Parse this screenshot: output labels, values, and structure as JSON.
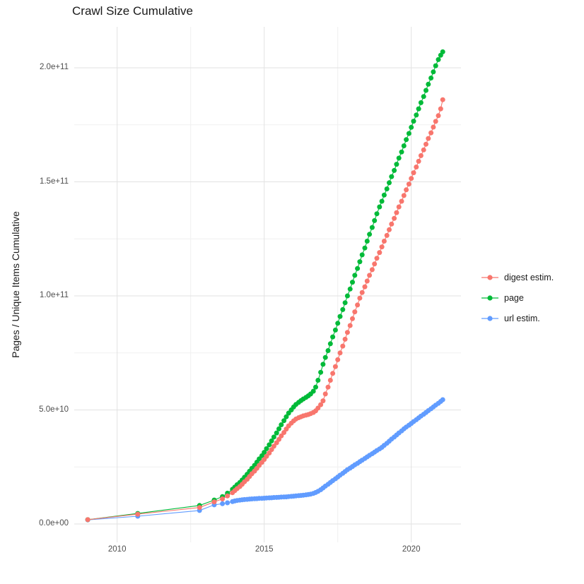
{
  "title": "Crawl Size Cumulative",
  "chart_data": {
    "type": "scatter",
    "marker": "circle-with-line",
    "title": "Crawl Size Cumulative",
    "xlabel": "",
    "ylabel": "Pages / Unique Items Cumulative",
    "value_unit_note": "series values in billions (1e9) of pages / unique items",
    "grid": "on",
    "legend_position": "right",
    "xlim": [
      2008.54,
      2021.69
    ],
    "ylim_billions": [
      -8,
      218
    ],
    "x_ticks": [
      {
        "label": "2010",
        "year": 2010
      },
      {
        "label": "2015",
        "year": 2015
      },
      {
        "label": "2020",
        "year": 2020
      }
    ],
    "x_minor_ticks": [
      2012.5,
      2017.5
    ],
    "y_ticks": [
      {
        "label": "0.0e+00",
        "value_billions": 0
      },
      {
        "label": "5.0e+10",
        "value_billions": 50
      },
      {
        "label": "1.0e+11",
        "value_billions": 100
      },
      {
        "label": "1.5e+11",
        "value_billions": 150
      },
      {
        "label": "2.0e+11",
        "value_billions": 200
      }
    ],
    "y_minor_ticks_billions": [
      25,
      75,
      125,
      175
    ],
    "series": [
      {
        "name": "digest estim.",
        "color": "#F8766D",
        "points": [
          [
            2009.0,
            1.9
          ],
          [
            2010.7,
            4.3
          ],
          [
            2012.8,
            7.2
          ],
          [
            2013.3,
            9.7
          ],
          [
            2013.58,
            11.0
          ],
          [
            2013.75,
            12.3
          ],
          [
            2013.92,
            13.7
          ],
          [
            2014.0,
            14.6
          ],
          [
            2014.08,
            15.5
          ],
          [
            2014.17,
            16.4
          ],
          [
            2014.25,
            17.4
          ],
          [
            2014.33,
            18.5
          ],
          [
            2014.42,
            19.6
          ],
          [
            2014.5,
            20.8
          ],
          [
            2014.58,
            22.0
          ],
          [
            2014.67,
            23.2
          ],
          [
            2014.75,
            24.4
          ],
          [
            2014.83,
            25.7
          ],
          [
            2014.92,
            27.0
          ],
          [
            2015.0,
            28.3
          ],
          [
            2015.08,
            29.7
          ],
          [
            2015.17,
            31.1
          ],
          [
            2015.25,
            32.6
          ],
          [
            2015.33,
            34.1
          ],
          [
            2015.42,
            35.6
          ],
          [
            2015.5,
            37.1
          ],
          [
            2015.58,
            38.6
          ],
          [
            2015.67,
            40.1
          ],
          [
            2015.75,
            41.6
          ],
          [
            2015.83,
            43.0
          ],
          [
            2015.92,
            44.2
          ],
          [
            2016.0,
            45.2
          ],
          [
            2016.08,
            46.0
          ],
          [
            2016.17,
            46.6
          ],
          [
            2016.25,
            47.0
          ],
          [
            2016.33,
            47.4
          ],
          [
            2016.42,
            47.7
          ],
          [
            2016.5,
            48.0
          ],
          [
            2016.58,
            48.4
          ],
          [
            2016.67,
            48.9
          ],
          [
            2016.75,
            49.6
          ],
          [
            2016.83,
            50.8
          ],
          [
            2016.92,
            52.3
          ],
          [
            2017.0,
            54.0
          ],
          [
            2017.08,
            57.0
          ],
          [
            2017.17,
            60.0
          ],
          [
            2017.25,
            63.0
          ],
          [
            2017.33,
            66.0
          ],
          [
            2017.42,
            69.0
          ],
          [
            2017.5,
            72.0
          ],
          [
            2017.58,
            75.0
          ],
          [
            2017.67,
            78.0
          ],
          [
            2017.75,
            81.0
          ],
          [
            2017.83,
            84.0
          ],
          [
            2017.92,
            87.0
          ],
          [
            2018.0,
            90.0
          ],
          [
            2018.08,
            93.0
          ],
          [
            2018.17,
            96.0
          ],
          [
            2018.25,
            99.0
          ],
          [
            2018.33,
            101.5
          ],
          [
            2018.42,
            104.0
          ],
          [
            2018.5,
            106.5
          ],
          [
            2018.58,
            109.0
          ],
          [
            2018.67,
            111.5
          ],
          [
            2018.75,
            114.0
          ],
          [
            2018.83,
            116.5
          ],
          [
            2018.92,
            119.0
          ],
          [
            2019.0,
            121.5
          ],
          [
            2019.08,
            124.0
          ],
          [
            2019.17,
            126.5
          ],
          [
            2019.25,
            129.0
          ],
          [
            2019.33,
            131.5
          ],
          [
            2019.42,
            134.0
          ],
          [
            2019.5,
            136.5
          ],
          [
            2019.58,
            139.0
          ],
          [
            2019.67,
            141.5
          ],
          [
            2019.75,
            144.0
          ],
          [
            2019.83,
            146.5
          ],
          [
            2019.92,
            149.0
          ],
          [
            2020.0,
            151.5
          ],
          [
            2020.08,
            154.0
          ],
          [
            2020.17,
            156.5
          ],
          [
            2020.25,
            159.0
          ],
          [
            2020.33,
            161.5
          ],
          [
            2020.42,
            164.0
          ],
          [
            2020.5,
            166.5
          ],
          [
            2020.58,
            169.0
          ],
          [
            2020.67,
            171.5
          ],
          [
            2020.75,
            174.0
          ],
          [
            2020.83,
            176.5
          ],
          [
            2020.92,
            179.0
          ],
          [
            2021.0,
            182.0
          ],
          [
            2021.07,
            186.0
          ]
        ]
      },
      {
        "name": "page",
        "color": "#00BA38",
        "points": [
          [
            2009.0,
            1.9
          ],
          [
            2010.7,
            4.6
          ],
          [
            2012.8,
            8.1
          ],
          [
            2013.3,
            10.5
          ],
          [
            2013.58,
            12.0
          ],
          [
            2013.75,
            13.5
          ],
          [
            2013.92,
            15.2
          ],
          [
            2014.0,
            16.2
          ],
          [
            2014.08,
            17.2
          ],
          [
            2014.17,
            18.2
          ],
          [
            2014.25,
            19.3
          ],
          [
            2014.33,
            20.5
          ],
          [
            2014.42,
            21.8
          ],
          [
            2014.5,
            23.1
          ],
          [
            2014.58,
            24.4
          ],
          [
            2014.67,
            25.7
          ],
          [
            2014.75,
            27.1
          ],
          [
            2014.83,
            28.5
          ],
          [
            2014.92,
            29.9
          ],
          [
            2015.0,
            31.4
          ],
          [
            2015.08,
            33.0
          ],
          [
            2015.17,
            34.7
          ],
          [
            2015.25,
            36.4
          ],
          [
            2015.33,
            38.1
          ],
          [
            2015.42,
            39.9
          ],
          [
            2015.5,
            41.7
          ],
          [
            2015.58,
            43.5
          ],
          [
            2015.67,
            45.3
          ],
          [
            2015.75,
            47.0
          ],
          [
            2015.83,
            48.6
          ],
          [
            2015.92,
            50.0
          ],
          [
            2016.0,
            51.3
          ],
          [
            2016.08,
            52.4
          ],
          [
            2016.17,
            53.3
          ],
          [
            2016.25,
            54.1
          ],
          [
            2016.33,
            54.8
          ],
          [
            2016.42,
            55.5
          ],
          [
            2016.5,
            56.2
          ],
          [
            2016.58,
            57.0
          ],
          [
            2016.67,
            58.2
          ],
          [
            2016.75,
            60.0
          ],
          [
            2016.83,
            63.0
          ],
          [
            2016.92,
            66.5
          ],
          [
            2017.0,
            70.0
          ],
          [
            2017.08,
            73.0
          ],
          [
            2017.17,
            76.0
          ],
          [
            2017.25,
            79.0
          ],
          [
            2017.33,
            82.0
          ],
          [
            2017.42,
            85.0
          ],
          [
            2017.5,
            88.0
          ],
          [
            2017.58,
            91.0
          ],
          [
            2017.67,
            94.0
          ],
          [
            2017.75,
            97.0
          ],
          [
            2017.83,
            100.0
          ],
          [
            2017.92,
            103.0
          ],
          [
            2018.0,
            106.0
          ],
          [
            2018.08,
            109.0
          ],
          [
            2018.17,
            112.0
          ],
          [
            2018.25,
            115.0
          ],
          [
            2018.33,
            118.0
          ],
          [
            2018.42,
            121.0
          ],
          [
            2018.5,
            124.0
          ],
          [
            2018.58,
            127.0
          ],
          [
            2018.67,
            130.0
          ],
          [
            2018.75,
            133.0
          ],
          [
            2018.83,
            136.0
          ],
          [
            2018.92,
            139.0
          ],
          [
            2019.0,
            141.5
          ],
          [
            2019.08,
            144.2
          ],
          [
            2019.17,
            146.9
          ],
          [
            2019.25,
            149.6
          ],
          [
            2019.33,
            152.3
          ],
          [
            2019.42,
            155.0
          ],
          [
            2019.5,
            157.7
          ],
          [
            2019.58,
            160.4
          ],
          [
            2019.67,
            163.1
          ],
          [
            2019.75,
            165.8
          ],
          [
            2019.83,
            168.5
          ],
          [
            2019.92,
            171.2
          ],
          [
            2020.0,
            173.9
          ],
          [
            2020.08,
            176.6
          ],
          [
            2020.17,
            179.3
          ],
          [
            2020.25,
            182.0
          ],
          [
            2020.33,
            184.7
          ],
          [
            2020.42,
            187.4
          ],
          [
            2020.5,
            190.1
          ],
          [
            2020.58,
            192.8
          ],
          [
            2020.67,
            195.5
          ],
          [
            2020.75,
            198.2
          ],
          [
            2020.83,
            200.9
          ],
          [
            2020.92,
            203.6
          ],
          [
            2021.0,
            205.5
          ],
          [
            2021.07,
            207.0
          ]
        ]
      },
      {
        "name": "url estim.",
        "color": "#619CFF",
        "points": [
          [
            2009.0,
            1.8
          ],
          [
            2010.7,
            3.4
          ],
          [
            2012.8,
            5.9
          ],
          [
            2013.3,
            8.4
          ],
          [
            2013.58,
            8.9
          ],
          [
            2013.75,
            9.3
          ],
          [
            2013.92,
            9.8
          ],
          [
            2014.0,
            10.1
          ],
          [
            2014.08,
            10.3
          ],
          [
            2014.17,
            10.45
          ],
          [
            2014.25,
            10.6
          ],
          [
            2014.33,
            10.7
          ],
          [
            2014.42,
            10.8
          ],
          [
            2014.5,
            10.9
          ],
          [
            2014.58,
            11.0
          ],
          [
            2014.67,
            11.05
          ],
          [
            2014.75,
            11.1
          ],
          [
            2014.83,
            11.2
          ],
          [
            2014.92,
            11.25
          ],
          [
            2015.0,
            11.3
          ],
          [
            2015.08,
            11.4
          ],
          [
            2015.17,
            11.45
          ],
          [
            2015.25,
            11.5
          ],
          [
            2015.33,
            11.6
          ],
          [
            2015.42,
            11.65
          ],
          [
            2015.5,
            11.7
          ],
          [
            2015.58,
            11.8
          ],
          [
            2015.67,
            11.85
          ],
          [
            2015.75,
            11.9
          ],
          [
            2015.83,
            12.0
          ],
          [
            2015.92,
            12.1
          ],
          [
            2016.0,
            12.2
          ],
          [
            2016.08,
            12.3
          ],
          [
            2016.17,
            12.4
          ],
          [
            2016.25,
            12.5
          ],
          [
            2016.33,
            12.6
          ],
          [
            2016.42,
            12.75
          ],
          [
            2016.5,
            12.9
          ],
          [
            2016.58,
            13.1
          ],
          [
            2016.67,
            13.4
          ],
          [
            2016.75,
            13.8
          ],
          [
            2016.83,
            14.3
          ],
          [
            2016.92,
            15.0
          ],
          [
            2017.0,
            15.8
          ],
          [
            2017.08,
            16.6
          ],
          [
            2017.17,
            17.4
          ],
          [
            2017.25,
            18.2
          ],
          [
            2017.33,
            19.0
          ],
          [
            2017.42,
            19.8
          ],
          [
            2017.5,
            20.6
          ],
          [
            2017.58,
            21.4
          ],
          [
            2017.67,
            22.2
          ],
          [
            2017.75,
            23.0
          ],
          [
            2017.83,
            23.8
          ],
          [
            2017.92,
            24.5
          ],
          [
            2018.0,
            25.2
          ],
          [
            2018.08,
            25.9
          ],
          [
            2018.17,
            26.6
          ],
          [
            2018.25,
            27.3
          ],
          [
            2018.33,
            28.0
          ],
          [
            2018.42,
            28.7
          ],
          [
            2018.5,
            29.4
          ],
          [
            2018.58,
            30.1
          ],
          [
            2018.67,
            30.8
          ],
          [
            2018.75,
            31.5
          ],
          [
            2018.83,
            32.2
          ],
          [
            2018.92,
            32.9
          ],
          [
            2019.0,
            33.6
          ],
          [
            2019.08,
            34.5
          ],
          [
            2019.17,
            35.4
          ],
          [
            2019.25,
            36.3
          ],
          [
            2019.33,
            37.2
          ],
          [
            2019.42,
            38.1
          ],
          [
            2019.5,
            39.0
          ],
          [
            2019.58,
            39.9
          ],
          [
            2019.67,
            40.8
          ],
          [
            2019.75,
            41.7
          ],
          [
            2019.83,
            42.5
          ],
          [
            2019.92,
            43.3
          ],
          [
            2020.0,
            44.1
          ],
          [
            2020.08,
            44.9
          ],
          [
            2020.17,
            45.7
          ],
          [
            2020.25,
            46.5
          ],
          [
            2020.33,
            47.3
          ],
          [
            2020.42,
            48.1
          ],
          [
            2020.5,
            48.9
          ],
          [
            2020.58,
            49.7
          ],
          [
            2020.67,
            50.5
          ],
          [
            2020.75,
            51.3
          ],
          [
            2020.83,
            52.1
          ],
          [
            2020.92,
            52.9
          ],
          [
            2021.0,
            53.7
          ],
          [
            2021.07,
            54.5
          ]
        ]
      }
    ],
    "legend": {
      "items": [
        {
          "label": "digest estim.",
          "color": "#F8766D"
        },
        {
          "label": "page",
          "color": "#00BA38"
        },
        {
          "label": "url estim.",
          "color": "#619CFF"
        }
      ]
    },
    "colors": {
      "grid_major": "#e2e2e2",
      "grid_minor": "#f0f0f0",
      "tick_text": "#4d4d4d",
      "title_text": "#1a1a1a",
      "background": "#ffffff"
    }
  }
}
